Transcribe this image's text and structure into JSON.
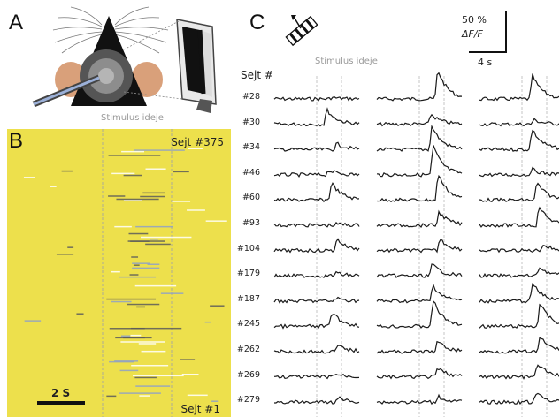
{
  "panels": {
    "a_letter": "A",
    "b_letter": "B",
    "c_letter": "C"
  },
  "stimulus_label_a": "Stimulus ideje",
  "stimulus_label_c": "Stimulus ideje",
  "heatmap": {
    "top_label": "Sejt #375",
    "bottom_label": "Sejt #1",
    "scalebar_label": "2 S",
    "background_color": "#ede04c"
  },
  "traces": {
    "header": "Sejt #",
    "scale_pct": "50 %",
    "scale_dff": "ΔF/F",
    "scale_time": "4 s",
    "stimulus_icon": "grating-stimulus-icon"
  },
  "chart_data": {
    "type": "line",
    "title": "",
    "xlabel": "",
    "ylabel": "",
    "stimulus_label": "Stimulus ideje",
    "conditions": 3,
    "cells": [
      {
        "label": "#28",
        "responses": [
          0.05,
          1.0,
          0.8
        ]
      },
      {
        "label": "#30",
        "responses": [
          0.5,
          0.35,
          0.15
        ]
      },
      {
        "label": "#34",
        "responses": [
          0.2,
          0.8,
          0.7
        ]
      },
      {
        "label": "#46",
        "responses": [
          0.15,
          1.0,
          0.2
        ]
      },
      {
        "label": "#60",
        "responses": [
          0.6,
          0.9,
          0.6
        ]
      },
      {
        "label": "#93",
        "responses": [
          0.05,
          0.45,
          0.65
        ]
      },
      {
        "label": "#104",
        "responses": [
          0.4,
          0.4,
          0.2
        ]
      },
      {
        "label": "#179",
        "responses": [
          0.1,
          0.4,
          0.3
        ]
      },
      {
        "label": "#187",
        "responses": [
          0.1,
          0.55,
          0.6
        ]
      },
      {
        "label": "#245",
        "responses": [
          0.5,
          0.9,
          0.8
        ]
      },
      {
        "label": "#262",
        "responses": [
          0.2,
          0.35,
          0.5
        ]
      },
      {
        "label": "#269",
        "responses": [
          0.1,
          0.3,
          0.45
        ]
      },
      {
        "label": "#279",
        "responses": [
          0.15,
          0.2,
          0.3
        ]
      }
    ]
  }
}
